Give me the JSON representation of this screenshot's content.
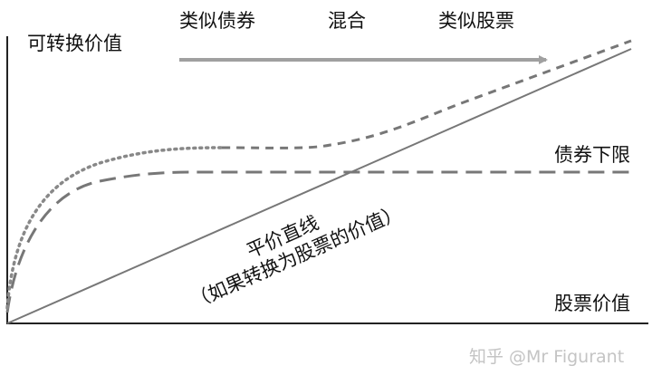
{
  "y_axis_label": "可转换价值",
  "x_axis_label": "股票价值",
  "phases": [
    "类似债券",
    "混合",
    "类似股票"
  ],
  "bond_floor_label": "债券下限",
  "parity_line_label": "平价直线",
  "parity_line_sublabel": "（如果转换为股票的价值）",
  "watermark": "知乎 @Mr Figurant",
  "colors": {
    "axis": "#222222",
    "curves": "#777777",
    "arrow": "#a0a0a0"
  }
}
